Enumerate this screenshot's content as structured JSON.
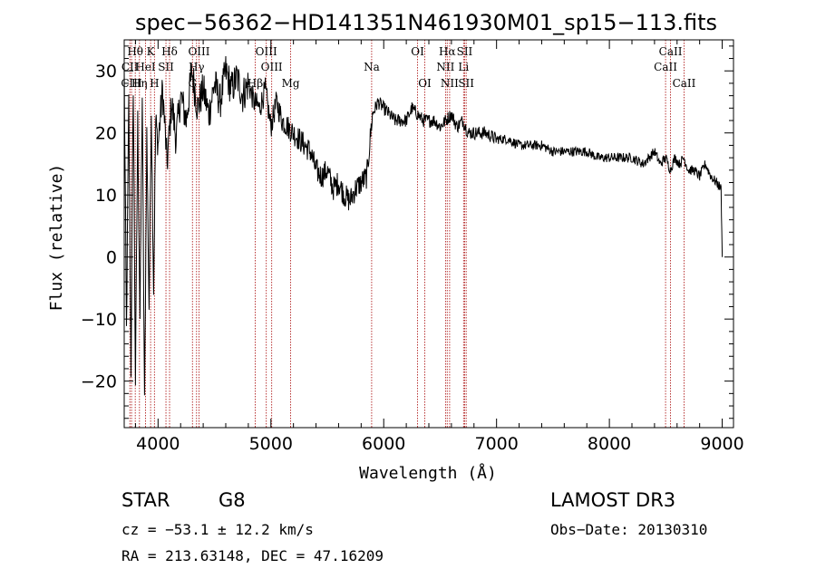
{
  "chart_data": {
    "type": "line",
    "title": "spec−56362−HD141351N461930M01_sp15−113.fits",
    "xlabel": "Wavelength (Å)",
    "ylabel": "Flux (relative)",
    "xlim": [
      3700,
      9100
    ],
    "ylim": [
      -27.5,
      35
    ],
    "xticks": [
      4000,
      5000,
      6000,
      7000,
      8000,
      9000
    ],
    "yticks": [
      -20,
      -10,
      0,
      10,
      20,
      30
    ],
    "xtick_labels": [
      "4000",
      "5000",
      "6000",
      "7000",
      "8000",
      "9000"
    ],
    "ytick_labels": [
      "−20",
      "−10",
      "0",
      "10",
      "20",
      "30"
    ],
    "line_color": "#000000",
    "marker_color": "#b22222",
    "spectrum": {
      "x": [
        3700,
        3720,
        3740,
        3760,
        3780,
        3800,
        3820,
        3840,
        3860,
        3880,
        3900,
        3920,
        3940,
        3960,
        3980,
        4000,
        4040,
        4080,
        4120,
        4160,
        4200,
        4250,
        4300,
        4350,
        4400,
        4450,
        4500,
        4550,
        4600,
        4650,
        4700,
        4750,
        4800,
        4850,
        4900,
        4950,
        5000,
        5050,
        5100,
        5150,
        5200,
        5250,
        5300,
        5350,
        5400,
        5450,
        5500,
        5550,
        5600,
        5650,
        5700,
        5750,
        5800,
        5850,
        5900,
        5950,
        6000,
        6050,
        6100,
        6150,
        6200,
        6250,
        6300,
        6350,
        6400,
        6450,
        6500,
        6550,
        6600,
        6650,
        6700,
        6750,
        6800,
        6900,
        7000,
        7100,
        7200,
        7300,
        7400,
        7500,
        7600,
        7700,
        7800,
        7900,
        8000,
        8100,
        8200,
        8300,
        8400,
        8450,
        8500,
        8540,
        8580,
        8620,
        8660,
        8700,
        8750,
        8800,
        8850,
        8900,
        8950,
        8990,
        9000
      ],
      "y": [
        30,
        -12,
        25,
        -18,
        28,
        -20,
        22,
        -10,
        26,
        -24,
        20,
        -8,
        24,
        -5,
        22,
        18,
        27,
        15,
        25,
        19,
        26,
        22,
        30,
        24,
        27,
        23,
        28,
        25,
        30,
        27,
        29,
        26,
        28,
        25,
        24,
        27,
        21,
        25,
        22,
        21,
        20,
        19,
        18,
        17,
        14,
        13,
        14,
        11,
        12,
        10,
        9,
        11,
        12,
        13,
        23,
        25,
        24,
        23,
        22,
        22,
        22,
        24,
        23,
        22,
        22,
        22,
        21,
        22,
        23,
        21,
        22,
        20,
        20,
        20,
        19,
        19,
        18,
        18,
        18,
        17,
        17,
        17,
        17,
        16,
        16,
        16,
        16,
        15,
        17,
        15,
        16,
        14,
        16,
        15,
        16,
        14,
        14,
        13,
        15,
        13,
        12,
        11,
        0
      ]
    },
    "lines": [
      {
        "label": "Hθ",
        "wave": 3798,
        "row": 1
      },
      {
        "label": "CII",
        "wave": 3750,
        "row": 2
      },
      {
        "label": "CIII",
        "wave": 3765,
        "row": 3
      },
      {
        "label": "K",
        "wave": 3934,
        "row": 1
      },
      {
        "label": "HeI",
        "wave": 3889,
        "row": 2
      },
      {
        "label": "Hη",
        "wave": 3835,
        "row": 3
      },
      {
        "label": "Hδ",
        "wave": 4102,
        "row": 1
      },
      {
        "label": "SII",
        "wave": 4070,
        "row": 2
      },
      {
        "label": "H",
        "wave": 3968,
        "row": 3
      },
      {
        "label": "OIII",
        "wave": 4363,
        "row": 1
      },
      {
        "label": "Hγ",
        "wave": 4341,
        "row": 2
      },
      {
        "label": "G",
        "wave": 4305,
        "row": 3
      },
      {
        "label": "OIII",
        "wave": 4959,
        "row": 1
      },
      {
        "label": "OIII",
        "wave": 5007,
        "row": 2
      },
      {
        "label": "Hβ",
        "wave": 4861,
        "row": 3
      },
      {
        "label": "Mg",
        "wave": 5175,
        "row": 3
      },
      {
        "label": "Na",
        "wave": 5893,
        "row": 2
      },
      {
        "label": "OI",
        "wave": 6300,
        "row": 1
      },
      {
        "label": "OI",
        "wave": 6364,
        "row": 3
      },
      {
        "label": "Hα",
        "wave": 6563,
        "row": 1
      },
      {
        "label": "NII",
        "wave": 6548,
        "row": 2
      },
      {
        "label": "NII",
        "wave": 6584,
        "row": 3
      },
      {
        "label": "SII",
        "wave": 6717,
        "row": 1
      },
      {
        "label": "Li",
        "wave": 6708,
        "row": 2
      },
      {
        "label": "SII",
        "wave": 6731,
        "row": 3
      },
      {
        "label": "CaII",
        "wave": 8542,
        "row": 1
      },
      {
        "label": "CaII",
        "wave": 8498,
        "row": 2
      },
      {
        "label": "CaII",
        "wave": 8662,
        "row": 3
      }
    ]
  },
  "info": {
    "object_class": "STAR",
    "subclass": "G8",
    "survey": "LAMOST DR3",
    "cz": "cz = −53.1 ± 12.2 km/s",
    "obs_date": "Obs−Date: 20130310",
    "coords": "RA = 213.63148, DEC =  47.16209"
  }
}
